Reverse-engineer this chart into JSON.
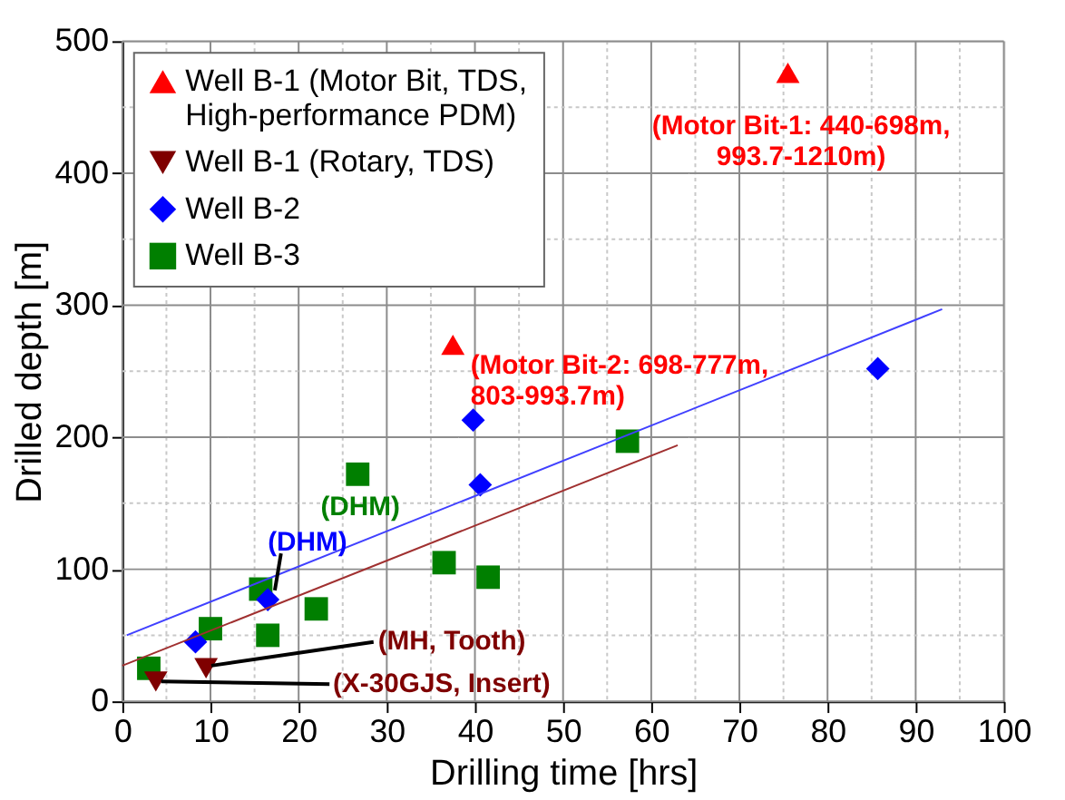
{
  "chart_data": {
    "type": "scatter",
    "xlabel": "Drilling time [hrs]",
    "ylabel": "Drilled depth [m]",
    "xlim": [
      0,
      100
    ],
    "ylim": [
      0,
      500
    ],
    "xticks": [
      0,
      {
        "value": 5,
        "label": null
      },
      10,
      {
        "value": 15,
        "label": null
      },
      20,
      {
        "value": 25,
        "label": null
      },
      30,
      {
        "value": 35,
        "label": null
      },
      40,
      {
        "value": 45,
        "label": null
      },
      50,
      {
        "value": 55,
        "label": null
      },
      60,
      {
        "value": 65,
        "label": null
      },
      70,
      {
        "value": 75,
        "label": null
      },
      80,
      {
        "value": 85,
        "label": null
      },
      90,
      {
        "value": 95,
        "label": null
      },
      100
    ],
    "yticks": [
      0,
      {
        "value": 50,
        "label": null
      },
      100,
      {
        "value": 150,
        "label": null
      },
      200,
      {
        "value": 250,
        "label": null
      },
      300,
      {
        "value": 350,
        "label": null
      },
      400,
      {
        "value": 450,
        "label": null
      },
      500
    ],
    "grid": true,
    "legend": "top left",
    "series": [
      {
        "name": "Well B-1 (Motor Bit, TDS, High-performance PDM)",
        "color": "#ff0000",
        "marker": "triangle",
        "x": [
          75.5,
          37.5
        ],
        "values": [
          476,
          270
        ]
      },
      {
        "name": "Well B-1 (Rotary, TDS)",
        "color": "#7f0000",
        "marker": "triangle-down",
        "x": [
          9.5,
          3.8
        ],
        "values": [
          25,
          15
        ]
      },
      {
        "name": "Well B-2",
        "color": "#0000ff",
        "marker": "diamond",
        "x": [
          8.3,
          16.5,
          39.8,
          40.6,
          85.7
        ],
        "values": [
          45,
          77,
          213,
          164,
          252
        ]
      },
      {
        "name": "Well B-3",
        "color": "#007f00",
        "marker": "square",
        "x": [
          3,
          10,
          15.7,
          16.5,
          22,
          26.7,
          36.5,
          41.5,
          57.3
        ],
        "values": [
          25,
          55,
          85,
          50,
          70,
          172,
          105,
          94,
          197
        ]
      },
      {
        "type": "line",
        "color": "#4040ff",
        "x": [
          0.5,
          93
        ],
        "values": [
          50,
          297
        ]
      },
      {
        "type": "line",
        "color": "#a03030",
        "x": [
          0,
          63
        ],
        "values": [
          27,
          194
        ]
      }
    ],
    "annotations": [
      {
        "text": "(Motor Bit-1: 440-698m, 993.7-1210m)",
        "x": 75.5,
        "y": 476
      },
      {
        "text": "(Motor Bit-2: 698-777m, 803-993.7m)",
        "x": 37.5,
        "y": 270
      },
      {
        "text": "(DHM)",
        "x": 26.7,
        "y": 172
      },
      {
        "text": "(DHM)",
        "x": 16.5,
        "y": 77
      },
      {
        "text": "(MH, Tooth)",
        "x": 9.5,
        "y": 25
      },
      {
        "text": "(X-30GJS, Insert)",
        "x": 3.8,
        "y": 15
      }
    ]
  }
}
